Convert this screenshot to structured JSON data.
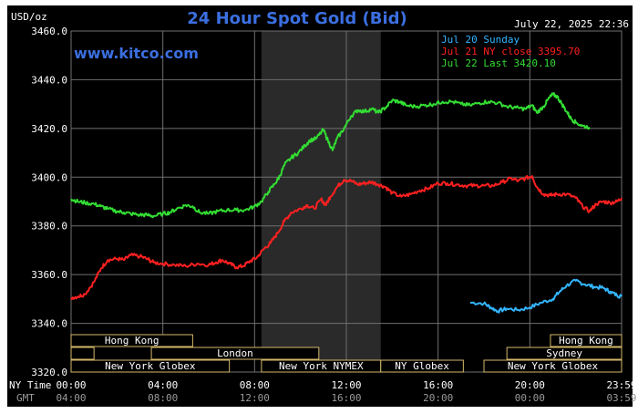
{
  "header": {
    "unit_label": "USD/oz",
    "title": "24 Hour Spot Gold (Bid)",
    "timestamp": "July 22, 2025 22:36",
    "watermark": "www.kitco.com"
  },
  "colors": {
    "background": "#000000",
    "grid": "#6f6f6f",
    "title": "#3b6fe0",
    "text": "#ffffff",
    "session_shade": "#2a2a2a",
    "market_bar_fill": "#000000",
    "market_bar_border": "#d4b86a",
    "market_label": "#ffffff"
  },
  "chart_data": {
    "type": "line",
    "ylim": [
      3320,
      3460
    ],
    "y_ticks": [
      "3460.0",
      "3440.0",
      "3420.0",
      "3400.0",
      "3380.0",
      "3360.0",
      "3340.0",
      "3320.0"
    ],
    "x_range_hours": [
      0,
      24
    ],
    "x_tick_hours": [
      0,
      4,
      8,
      12,
      16,
      20,
      24
    ],
    "ny_time_label": "NY Time",
    "gmt_label": "GMT",
    "ny_time_ticks": [
      "00:00",
      "04:00",
      "08:00",
      "12:00",
      "16:00",
      "20:00",
      "23:59"
    ],
    "gmt_ticks": [
      "04:00",
      "08:00",
      "12:00",
      "16:00",
      "20:00",
      "00:00",
      "03:59"
    ],
    "shaded_session_hours": [
      8.3,
      13.5
    ],
    "legend": [
      {
        "label": "Jul 20 Sunday",
        "color": "#33b5ff"
      },
      {
        "label": "Jul 21 NY close 3395.70",
        "color": "#ff2020"
      },
      {
        "label": "Jul 22 Last 3420.10",
        "color": "#33dd33"
      }
    ],
    "series": [
      {
        "name": "Jul 20 Sunday",
        "color": "#33b5ff",
        "points": [
          [
            17.4,
            3348.5
          ],
          [
            18.0,
            3348.2
          ],
          [
            18.3,
            3346.5
          ],
          [
            18.6,
            3345.0
          ],
          [
            19.0,
            3346.0
          ],
          [
            19.5,
            3345.5
          ],
          [
            20.0,
            3346.5
          ],
          [
            20.5,
            3348.5
          ],
          [
            21.0,
            3350.0
          ],
          [
            21.3,
            3353.0
          ],
          [
            21.6,
            3355.5
          ],
          [
            22.0,
            3357.5
          ],
          [
            22.4,
            3356.0
          ],
          [
            22.8,
            3355.0
          ],
          [
            23.2,
            3354.5
          ],
          [
            23.5,
            3353.0
          ],
          [
            23.8,
            3351.5
          ],
          [
            24.0,
            3351.0
          ]
        ]
      },
      {
        "name": "Jul 21 NY close 3395.70",
        "color": "#ff2020",
        "points": [
          [
            0.0,
            3350.5
          ],
          [
            0.3,
            3351.0
          ],
          [
            0.6,
            3352.0
          ],
          [
            1.0,
            3357.0
          ],
          [
            1.3,
            3362.5
          ],
          [
            1.6,
            3366.0
          ],
          [
            2.0,
            3366.5
          ],
          [
            2.3,
            3366.0
          ],
          [
            2.6,
            3368.0
          ],
          [
            3.0,
            3367.5
          ],
          [
            3.3,
            3366.5
          ],
          [
            3.6,
            3365.0
          ],
          [
            4.0,
            3364.5
          ],
          [
            4.5,
            3364.0
          ],
          [
            5.0,
            3363.5
          ],
          [
            5.5,
            3364.5
          ],
          [
            6.0,
            3364.0
          ],
          [
            6.3,
            3365.0
          ],
          [
            6.6,
            3366.0
          ],
          [
            6.9,
            3364.5
          ],
          [
            7.2,
            3363.0
          ],
          [
            7.5,
            3363.5
          ],
          [
            7.8,
            3365.5
          ],
          [
            8.1,
            3367.0
          ],
          [
            8.4,
            3370.5
          ],
          [
            8.7,
            3373.0
          ],
          [
            9.0,
            3377.0
          ],
          [
            9.3,
            3382.0
          ],
          [
            9.6,
            3385.5
          ],
          [
            10.0,
            3387.0
          ],
          [
            10.3,
            3388.5
          ],
          [
            10.6,
            3387.0
          ],
          [
            10.9,
            3391.0
          ],
          [
            11.1,
            3388.5
          ],
          [
            11.3,
            3392.0
          ],
          [
            11.6,
            3396.0
          ],
          [
            11.9,
            3399.0
          ],
          [
            12.2,
            3398.5
          ],
          [
            12.5,
            3397.0
          ],
          [
            12.8,
            3397.5
          ],
          [
            13.1,
            3398.0
          ],
          [
            13.4,
            3397.0
          ],
          [
            13.7,
            3396.0
          ],
          [
            14.0,
            3393.5
          ],
          [
            14.4,
            3392.0
          ],
          [
            14.8,
            3393.0
          ],
          [
            15.2,
            3394.5
          ],
          [
            15.6,
            3395.5
          ],
          [
            16.0,
            3397.5
          ],
          [
            16.4,
            3397.5
          ],
          [
            16.8,
            3397.0
          ],
          [
            17.2,
            3396.5
          ],
          [
            17.6,
            3396.5
          ],
          [
            18.0,
            3396.5
          ],
          [
            18.4,
            3396.5
          ],
          [
            18.8,
            3398.0
          ],
          [
            19.2,
            3399.5
          ],
          [
            19.5,
            3398.5
          ],
          [
            19.8,
            3399.5
          ],
          [
            20.1,
            3400.5
          ],
          [
            20.3,
            3396.0
          ],
          [
            20.6,
            3393.0
          ],
          [
            20.9,
            3392.5
          ],
          [
            21.2,
            3393.0
          ],
          [
            21.6,
            3393.0
          ],
          [
            22.0,
            3391.5
          ],
          [
            22.3,
            3388.0
          ],
          [
            22.6,
            3386.0
          ],
          [
            22.9,
            3389.0
          ],
          [
            23.2,
            3390.0
          ],
          [
            23.5,
            3389.5
          ],
          [
            23.8,
            3390.0
          ],
          [
            24.0,
            3391.5
          ]
        ]
      },
      {
        "name": "Jul 22 Last 3420.10",
        "color": "#33dd33",
        "points": [
          [
            0.0,
            3391.0
          ],
          [
            0.3,
            3390.0
          ],
          [
            0.6,
            3389.5
          ],
          [
            1.0,
            3389.0
          ],
          [
            1.3,
            3388.0
          ],
          [
            1.6,
            3387.0
          ],
          [
            2.0,
            3386.0
          ],
          [
            2.3,
            3385.5
          ],
          [
            2.6,
            3385.0
          ],
          [
            3.0,
            3384.5
          ],
          [
            3.3,
            3384.5
          ],
          [
            3.6,
            3384.0
          ],
          [
            4.0,
            3385.0
          ],
          [
            4.3,
            3385.5
          ],
          [
            4.6,
            3387.0
          ],
          [
            5.0,
            3388.5
          ],
          [
            5.3,
            3388.0
          ],
          [
            5.6,
            3385.5
          ],
          [
            6.0,
            3385.0
          ],
          [
            6.4,
            3386.0
          ],
          [
            6.8,
            3386.5
          ],
          [
            7.2,
            3386.5
          ],
          [
            7.6,
            3386.5
          ],
          [
            8.0,
            3388.0
          ],
          [
            8.3,
            3390.0
          ],
          [
            8.6,
            3394.0
          ],
          [
            8.9,
            3397.5
          ],
          [
            9.1,
            3400.5
          ],
          [
            9.3,
            3405.0
          ],
          [
            9.6,
            3408.0
          ],
          [
            9.9,
            3410.0
          ],
          [
            10.2,
            3413.0
          ],
          [
            10.4,
            3415.0
          ],
          [
            10.7,
            3416.0
          ],
          [
            11.0,
            3419.5
          ],
          [
            11.2,
            3415.0
          ],
          [
            11.4,
            3411.0
          ],
          [
            11.6,
            3416.0
          ],
          [
            11.9,
            3420.0
          ],
          [
            12.2,
            3425.0
          ],
          [
            12.5,
            3427.5
          ],
          [
            12.8,
            3427.0
          ],
          [
            13.1,
            3428.0
          ],
          [
            13.4,
            3426.5
          ],
          [
            13.7,
            3428.5
          ],
          [
            14.0,
            3431.5
          ],
          [
            14.3,
            3431.0
          ],
          [
            14.6,
            3429.5
          ],
          [
            15.0,
            3429.0
          ],
          [
            15.4,
            3429.5
          ],
          [
            15.8,
            3430.0
          ],
          [
            16.2,
            3431.0
          ],
          [
            16.6,
            3431.0
          ],
          [
            17.0,
            3430.0
          ],
          [
            17.4,
            3429.5
          ],
          [
            17.8,
            3430.5
          ],
          [
            18.2,
            3431.0
          ],
          [
            18.6,
            3430.5
          ],
          [
            19.0,
            3429.0
          ],
          [
            19.4,
            3428.5
          ],
          [
            19.8,
            3428.0
          ],
          [
            20.1,
            3429.5
          ],
          [
            20.3,
            3426.5
          ],
          [
            20.6,
            3429.0
          ],
          [
            20.8,
            3432.0
          ],
          [
            21.0,
            3434.0
          ],
          [
            21.2,
            3433.0
          ],
          [
            21.4,
            3430.0
          ],
          [
            21.6,
            3427.0
          ],
          [
            21.8,
            3424.0
          ],
          [
            22.0,
            3422.5
          ],
          [
            22.3,
            3421.0
          ],
          [
            22.6,
            3420.5
          ]
        ]
      }
    ],
    "market_sessions": [
      {
        "label": "Hong Kong",
        "start": 0.0,
        "end": 5.3,
        "row": 0
      },
      {
        "label": "",
        "start": 0.0,
        "end": 1.0,
        "row": 1
      },
      {
        "label": "London",
        "start": 3.5,
        "end": 10.8,
        "row": 1
      },
      {
        "label": "New York Globex",
        "start": 0.0,
        "end": 6.9,
        "row": 2
      },
      {
        "label": "New York NYMEX",
        "start": 8.3,
        "end": 13.5,
        "row": 2
      },
      {
        "label": "NY Globex",
        "start": 13.5,
        "end": 17.1,
        "row": 2
      },
      {
        "label": "Hong Kong",
        "start": 20.9,
        "end": 24.0,
        "row": 0
      },
      {
        "label": "Sydney",
        "start": 19.0,
        "end": 24.0,
        "row": 1
      },
      {
        "label": "New York Globex",
        "start": 18.0,
        "end": 24.0,
        "row": 2
      }
    ]
  }
}
